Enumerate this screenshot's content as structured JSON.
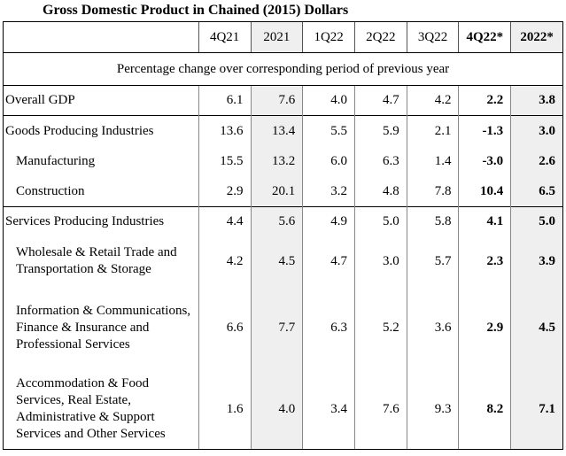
{
  "title": "Gross Domestic Product in Chained (2015) Dollars",
  "columns": [
    "4Q21",
    "2021",
    "1Q22",
    "2Q22",
    "3Q22",
    "4Q22*",
    "2022*"
  ],
  "subtitle": "Percentage change over corresponding period of previous year",
  "rows": [
    {
      "label": "Overall GDP",
      "values": [
        "6.1",
        "7.6",
        "4.0",
        "4.7",
        "4.2",
        "2.2",
        "3.8"
      ]
    },
    {
      "label": "Goods Producing Industries",
      "values": [
        "13.6",
        "13.4",
        "5.5",
        "5.9",
        "2.1",
        "-1.3",
        "3.0"
      ]
    },
    {
      "label": "Manufacturing",
      "values": [
        "15.5",
        "13.2",
        "6.0",
        "6.3",
        "1.4",
        "-3.0",
        "2.6"
      ]
    },
    {
      "label": "Construction",
      "values": [
        "2.9",
        "20.1",
        "3.2",
        "4.8",
        "7.8",
        "10.4",
        "6.5"
      ]
    },
    {
      "label": "Services Producing Industries",
      "values": [
        "4.4",
        "5.6",
        "4.9",
        "5.0",
        "5.8",
        "4.1",
        "5.0"
      ]
    },
    {
      "label": "Wholesale & Retail Trade and Transportation & Storage",
      "values": [
        "4.2",
        "4.5",
        "4.7",
        "3.0",
        "5.7",
        "2.3",
        "3.9"
      ]
    },
    {
      "label": "Information & Communications, Finance & Insurance and Professional Services",
      "values": [
        "6.6",
        "7.7",
        "6.3",
        "5.2",
        "3.6",
        "2.9",
        "4.5"
      ]
    },
    {
      "label": "Accommodation & Food Services, Real Estate, Administrative & Support Services and Other Services",
      "values": [
        "1.6",
        "4.0",
        "3.4",
        "7.6",
        "9.3",
        "8.2",
        "7.1"
      ]
    }
  ]
}
